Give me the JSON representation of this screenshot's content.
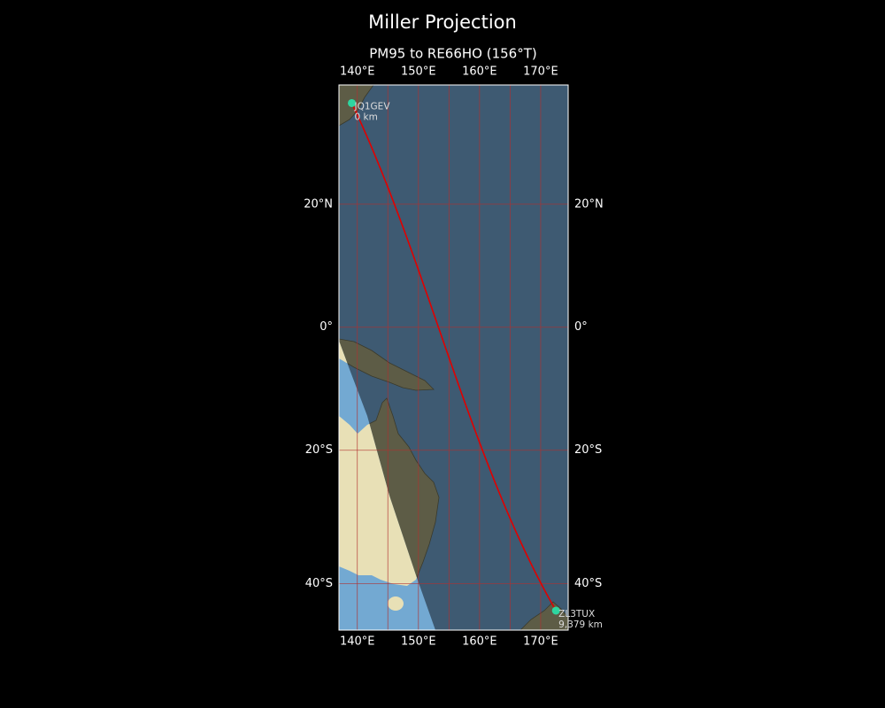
{
  "map": {
    "title": "Miller Projection",
    "subtitle": "PM95 to RE66HO (156°T)",
    "projection": "miller",
    "xlim": [
      137,
      174.5
    ],
    "ylim": [
      -46.3,
      38
    ],
    "xticks": [
      {
        "value": 140,
        "label": "140°E"
      },
      {
        "value": 150,
        "label": "150°E"
      },
      {
        "value": 160,
        "label": "160°E"
      },
      {
        "value": 170,
        "label": "170°E"
      }
    ],
    "yticks": [
      {
        "value": 20,
        "label": "20°N"
      },
      {
        "value": 0,
        "label": "0°"
      },
      {
        "value": -20,
        "label": "20°S"
      },
      {
        "value": -40,
        "label": "40°S"
      }
    ],
    "xgrid": [
      140,
      145,
      150,
      155,
      160,
      165,
      170
    ],
    "grid_color": "#b03030",
    "path_color": "#e00000",
    "marker_color": "#2ed6a0",
    "stations": [
      {
        "name": "JQ1GEV",
        "distance": "0 km",
        "lon": 139.1,
        "lat": 35.4
      },
      {
        "name": "ZL3TUX",
        "distance": "9,379 km",
        "lon": 172.5,
        "lat": -43.7
      }
    ]
  }
}
